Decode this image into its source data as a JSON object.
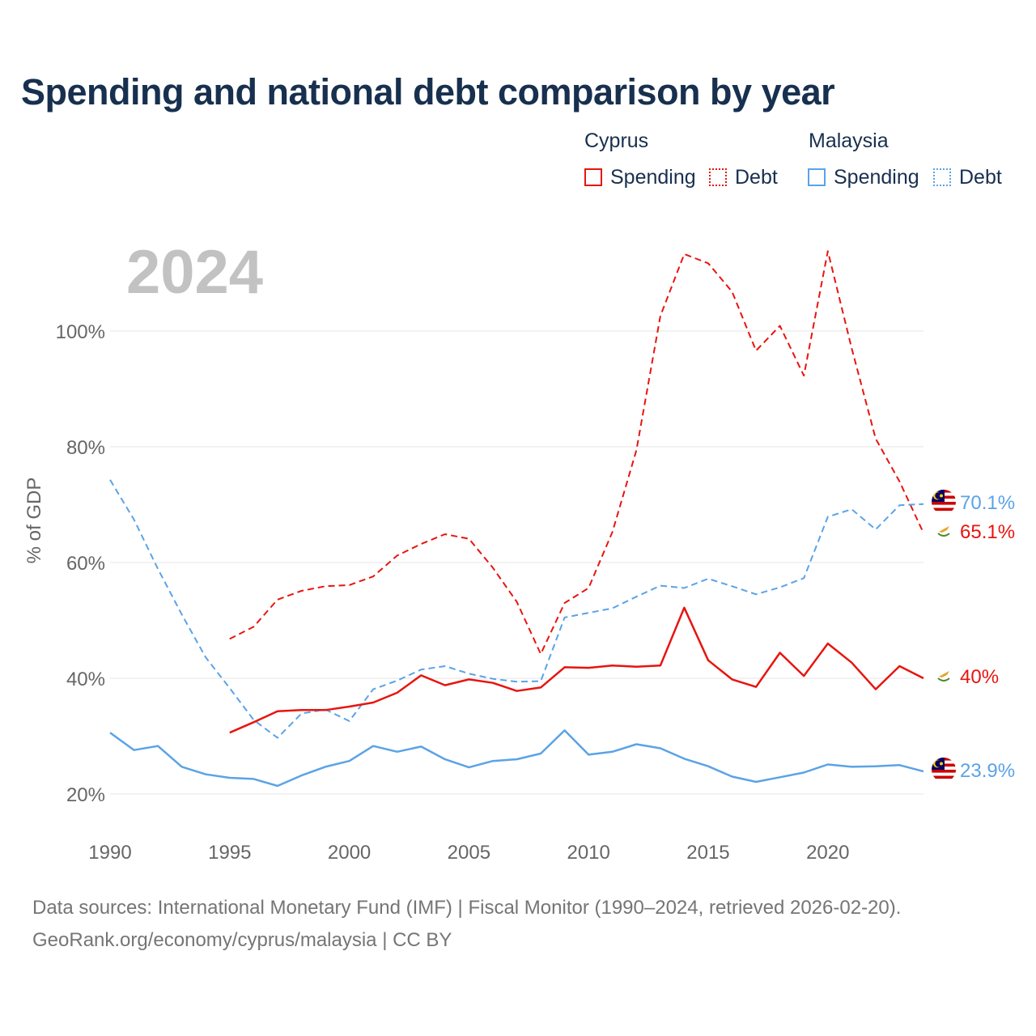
{
  "title": "Spending and national debt comparison by year",
  "legend": {
    "groups": [
      {
        "name": "Cyprus",
        "items": [
          {
            "label": "Spending",
            "style": "solid"
          },
          {
            "label": "Debt",
            "style": "dotted"
          }
        ],
        "color": "#e8140f"
      },
      {
        "name": "Malaysia",
        "items": [
          {
            "label": "Spending",
            "style": "solid"
          },
          {
            "label": "Debt",
            "style": "dotted"
          }
        ],
        "color": "#5ba3e6"
      }
    ]
  },
  "year_watermark": "2024",
  "footer": {
    "line1": "Data sources: International Monetary Fund (IMF) | Fiscal Monitor (1990–2024, retrieved 2026-02-20).",
    "line2": "GeoRank.org/economy/cyprus/malaysia | CC BY"
  },
  "chart_data": {
    "type": "line",
    "title": "Spending and national debt comparison by year",
    "xlabel": "",
    "ylabel": "% of GDP",
    "xlim": [
      1990,
      2024
    ],
    "ylim": [
      15,
      115
    ],
    "x_ticks": [
      1990,
      1995,
      2000,
      2005,
      2010,
      2015,
      2020
    ],
    "y_ticks": [
      20,
      40,
      60,
      80,
      100
    ],
    "y_tick_labels": [
      "20%",
      "40%",
      "60%",
      "80%",
      "100%"
    ],
    "series": [
      {
        "name": "Cyprus Debt",
        "country": "Cyprus",
        "metric": "Debt",
        "color": "#e8140f",
        "dash": "dashed",
        "x": [
          1995,
          1996,
          1997,
          1998,
          1999,
          2000,
          2001,
          2002,
          2003,
          2004,
          2005,
          2006,
          2007,
          2008,
          2009,
          2010,
          2011,
          2012,
          2013,
          2014,
          2015,
          2016,
          2017,
          2018,
          2019,
          2020,
          2021,
          2022,
          2023,
          2024
        ],
        "values": [
          46.8,
          48.9,
          53.6,
          55.1,
          55.9,
          56.1,
          57.6,
          61.2,
          63.2,
          64.9,
          64.1,
          59.1,
          53.2,
          44.2,
          53.0,
          55.6,
          65.3,
          79.4,
          102.6,
          113.3,
          111.7,
          106.8,
          96.6,
          100.9,
          92.3,
          113.8,
          97.0,
          81.4,
          74.0,
          65.1
        ],
        "end_label": "65.1%",
        "flag": "cyprus"
      },
      {
        "name": "Malaysia Debt",
        "country": "Malaysia",
        "metric": "Debt",
        "color": "#5ba3e6",
        "dash": "dashed",
        "x": [
          1990,
          1991,
          1992,
          1993,
          1994,
          1995,
          1996,
          1997,
          1998,
          1999,
          2000,
          2001,
          2002,
          2003,
          2004,
          2005,
          2006,
          2007,
          2008,
          2009,
          2010,
          2011,
          2012,
          2013,
          2014,
          2015,
          2016,
          2017,
          2018,
          2019,
          2020,
          2021,
          2022,
          2023,
          2024
        ],
        "values": [
          74.3,
          67.4,
          58.9,
          51.0,
          43.6,
          38.3,
          32.8,
          29.7,
          33.9,
          34.6,
          32.6,
          38.1,
          39.6,
          41.5,
          42.1,
          40.8,
          39.9,
          39.4,
          39.5,
          50.5,
          51.3,
          52.1,
          54.1,
          56.0,
          55.6,
          57.2,
          55.9,
          54.5,
          55.7,
          57.3,
          67.9,
          69.2,
          65.7,
          69.9,
          70.1
        ],
        "end_label": "70.1%",
        "flag": "malaysia"
      },
      {
        "name": "Cyprus Spending",
        "country": "Cyprus",
        "metric": "Spending",
        "color": "#e8140f",
        "dash": "solid",
        "x": [
          1995,
          1996,
          1997,
          1998,
          1999,
          2000,
          2001,
          2002,
          2003,
          2004,
          2005,
          2006,
          2007,
          2008,
          2009,
          2010,
          2011,
          2012,
          2013,
          2014,
          2015,
          2016,
          2017,
          2018,
          2019,
          2020,
          2021,
          2022,
          2023,
          2024
        ],
        "values": [
          30.6,
          32.4,
          34.3,
          34.5,
          34.5,
          35.1,
          35.8,
          37.5,
          40.5,
          38.8,
          39.8,
          39.2,
          37.8,
          38.4,
          41.9,
          41.8,
          42.2,
          42.0,
          42.2,
          52.2,
          43.1,
          39.8,
          38.5,
          44.4,
          40.4,
          46.0,
          42.7,
          38.1,
          42.1,
          40.0
        ],
        "end_label": "40%",
        "flag": "cyprus"
      },
      {
        "name": "Malaysia Spending",
        "country": "Malaysia",
        "metric": "Spending",
        "color": "#5ba3e6",
        "dash": "solid",
        "x": [
          1990,
          1991,
          1992,
          1993,
          1994,
          1995,
          1996,
          1997,
          1998,
          1999,
          2000,
          2001,
          2002,
          2003,
          2004,
          2005,
          2006,
          2007,
          2008,
          2009,
          2010,
          2011,
          2012,
          2013,
          2014,
          2015,
          2016,
          2017,
          2018,
          2019,
          2020,
          2021,
          2022,
          2023,
          2024
        ],
        "values": [
          30.6,
          27.6,
          28.3,
          24.7,
          23.4,
          22.8,
          22.6,
          21.4,
          23.2,
          24.7,
          25.7,
          28.3,
          27.3,
          28.2,
          26.0,
          24.6,
          25.7,
          26.0,
          27.0,
          31.0,
          26.8,
          27.3,
          28.6,
          27.9,
          26.1,
          24.8,
          23.0,
          22.1,
          22.9,
          23.7,
          25.1,
          24.7,
          24.8,
          25.0,
          23.9
        ],
        "end_label": "23.9%",
        "flag": "malaysia"
      }
    ]
  }
}
